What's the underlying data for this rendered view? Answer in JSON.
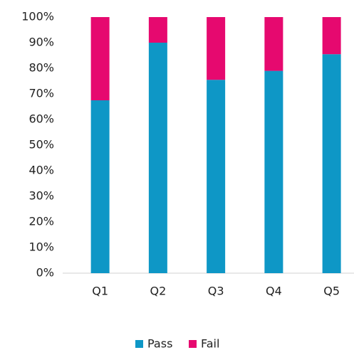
{
  "chart_data": {
    "type": "stacked_bar",
    "categories": [
      "Q1",
      "Q2",
      "Q3",
      "Q4",
      "Q5"
    ],
    "series": [
      {
        "name": "Pass",
        "color": "#0e97c6",
        "values": [
          67.5,
          90,
          75.5,
          79,
          85.5
        ]
      },
      {
        "name": "Fail",
        "color": "#e6096f",
        "values": [
          32.5,
          10,
          24.5,
          21,
          14.5
        ]
      }
    ],
    "ylim": [
      0,
      100
    ],
    "yticks": [
      {
        "value": 0,
        "label": "0%"
      },
      {
        "value": 10,
        "label": "10%"
      },
      {
        "value": 20,
        "label": "20%"
      },
      {
        "value": 30,
        "label": "30%"
      },
      {
        "value": 40,
        "label": "40%"
      },
      {
        "value": 50,
        "label": "50%"
      },
      {
        "value": 60,
        "label": "60%"
      },
      {
        "value": 70,
        "label": "70%"
      },
      {
        "value": 80,
        "label": "80%"
      },
      {
        "value": 90,
        "label": "90%"
      },
      {
        "value": 100,
        "label": "100%"
      }
    ],
    "grid": false,
    "legend": "bottom"
  }
}
